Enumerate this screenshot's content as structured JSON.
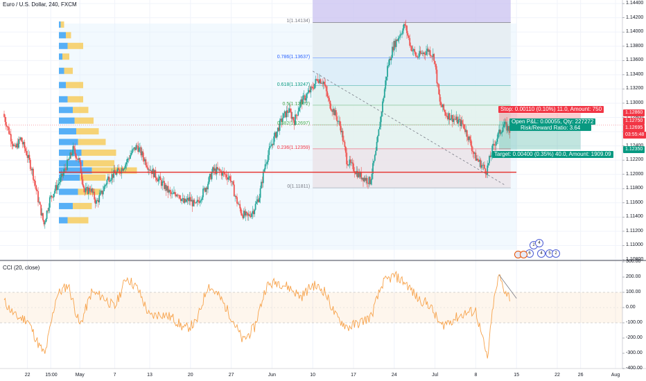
{
  "header": {
    "symbol_line": "Euro / U.S. Dollar, 240, FXCM"
  },
  "indicator": {
    "label": "CCI (20, close)"
  },
  "colors": {
    "up": "#26a69a",
    "down": "#ef5350",
    "cci": "#f7a24a",
    "vp_up": "#2196f3",
    "vp_down": "#f7c548",
    "redline": "#e53935",
    "stop_tag": "#f23645",
    "target_tag": "#089981",
    "price_tag": "#f23645"
  },
  "price_axis": {
    "ticks": [
      "1.14400",
      "1.14200",
      "1.14000",
      "1.13800",
      "1.13600",
      "1.13400",
      "1.13200",
      "1.13000",
      "1.12800",
      "1.12600",
      "1.12400",
      "1.12200",
      "1.12000",
      "1.11800",
      "1.11600",
      "1.11400",
      "1.11200",
      "1.11000",
      "1.10800"
    ],
    "tags": [
      {
        "text": "1.12860",
        "kind": "stop"
      },
      {
        "text": "1.12750",
        "kind": "last"
      },
      {
        "text": "1.12695",
        "kind": "last"
      },
      {
        "text": "03:55:48",
        "kind": "last"
      },
      {
        "text": "1.12350",
        "kind": "target"
      }
    ]
  },
  "cci_axis": {
    "ticks": [
      "300.00",
      "200.00",
      "100.00",
      "0.00",
      "-100.00",
      "-200.00",
      "-300.00",
      "-400.00"
    ]
  },
  "time_axis": {
    "labels": [
      "22",
      "15:00",
      "May",
      "7",
      "13",
      "20",
      "27",
      "Jun",
      "10",
      "17",
      "24",
      "Jul",
      "8",
      "15",
      "22",
      "26",
      "Aug"
    ]
  },
  "fib": {
    "levels": [
      {
        "text": "1(1.14134)"
      },
      {
        "text": "0.786(1.13637)"
      },
      {
        "text": "0.618(1.13247)"
      },
      {
        "text": "0.5(1.12972)"
      },
      {
        "text": "0.382(1.12697)"
      },
      {
        "text": "0.236(1.12359)"
      },
      {
        "text": "0(1.11811)"
      }
    ]
  },
  "position": {
    "stop_text": "Stop: 0.00110 (0.10%) 11.0, Amount: 750",
    "pnl_text": "Open P&L: 0.00055, Qty: 227272",
    "rr_text": "Risk/Reward Ratio: 3.64",
    "target_text": "Target: 0.00400 (0.35%) 40.0, Amount: 1909.09"
  },
  "event_badges": [
    "2",
    "4",
    "6",
    "4",
    "5",
    "2"
  ],
  "chart_data": {
    "type": "candlestick",
    "title": "Euro / U.S. Dollar, 240, FXCM",
    "y_range": [
      1.108,
      1.1445
    ],
    "x_range": [
      "Apr 18",
      "Aug 1"
    ],
    "redline_price": 1.1203,
    "cci": {
      "name": "CCI (20, close)",
      "y_range": [
        -400,
        300
      ],
      "band": [
        -100,
        100
      ]
    },
    "price_path": [
      [
        "Apr 18",
        1.1285
      ],
      [
        "Apr 19",
        1.126
      ],
      [
        "Apr 20",
        1.1235
      ],
      [
        "Apr 21",
        1.125
      ],
      [
        "Apr 22",
        1.123
      ],
      [
        "Apr 23",
        1.1205
      ],
      [
        "Apr 24",
        1.1165
      ],
      [
        "Apr 25",
        1.113
      ],
      [
        "Apr 26",
        1.1165
      ],
      [
        "Apr 27",
        1.118
      ],
      [
        "Apr 28",
        1.1195
      ],
      [
        "Apr 29",
        1.1215
      ],
      [
        "Apr 30",
        1.1235
      ],
      [
        "May 1",
        1.122
      ],
      [
        "May 2",
        1.1175
      ],
      [
        "May 3",
        1.118
      ],
      [
        "May 4",
        1.116
      ],
      [
        "May 5",
        1.1175
      ],
      [
        "May 6",
        1.1195
      ],
      [
        "May 7",
        1.12
      ],
      [
        "May 8",
        1.1205
      ],
      [
        "May 9",
        1.1215
      ],
      [
        "May 10",
        1.123
      ],
      [
        "May 11",
        1.124
      ],
      [
        "May 12",
        1.1225
      ],
      [
        "May 13",
        1.121
      ],
      [
        "May 14",
        1.12
      ],
      [
        "May 15",
        1.119
      ],
      [
        "May 16",
        1.118
      ],
      [
        "May 17",
        1.117
      ],
      [
        "May 18",
        1.1175
      ],
      [
        "May 19",
        1.116
      ],
      [
        "May 20",
        1.1165
      ],
      [
        "May 21",
        1.1155
      ],
      [
        "May 22",
        1.117
      ],
      [
        "May 23",
        1.1185
      ],
      [
        "May 24",
        1.1205
      ],
      [
        "May 25",
        1.1205
      ],
      [
        "May 26",
        1.12
      ],
      [
        "May 27",
        1.1195
      ],
      [
        "May 28",
        1.1165
      ],
      [
        "May 29",
        1.1145
      ],
      [
        "May 30",
        1.114
      ],
      [
        "May 31",
        1.115
      ],
      [
        "Jun 1",
        1.117
      ],
      [
        "Jun 2",
        1.1215
      ],
      [
        "Jun 3",
        1.124
      ],
      [
        "Jun 4",
        1.126
      ],
      [
        "Jun 5",
        1.128
      ],
      [
        "Jun 6",
        1.129
      ],
      [
        "Jun 7",
        1.1275
      ],
      [
        "Jun 8",
        1.13
      ],
      [
        "Jun 9",
        1.131
      ],
      [
        "Jun 10",
        1.132
      ],
      [
        "Jun 11",
        1.1335
      ],
      [
        "Jun 12",
        1.133
      ],
      [
        "Jun 13",
        1.13
      ],
      [
        "Jun 14",
        1.1285
      ],
      [
        "Jun 15",
        1.1265
      ],
      [
        "Jun 16",
        1.122
      ],
      [
        "Jun 17",
        1.121
      ],
      [
        "Jun 18",
        1.12
      ],
      [
        "Jun 19",
        1.1195
      ],
      [
        "Jun 20",
        1.119
      ],
      [
        "Jun 21",
        1.123
      ],
      [
        "Jun 22",
        1.129
      ],
      [
        "Jun 23",
        1.135
      ],
      [
        "Jun 24",
        1.138
      ],
      [
        "Jun 25",
        1.1395
      ],
      [
        "Jun 26",
        1.141
      ],
      [
        "Jun 27",
        1.138
      ],
      [
        "Jun 28",
        1.1365
      ],
      [
        "Jun 29",
        1.137
      ],
      [
        "Jun 30",
        1.1375
      ],
      [
        "Jul 1",
        1.1365
      ],
      [
        "Jul 2",
        1.13
      ],
      [
        "Jul 3",
        1.1285
      ],
      [
        "Jul 4",
        1.128
      ],
      [
        "Jul 5",
        1.1275
      ],
      [
        "Jul 6",
        1.127
      ],
      [
        "Jul 7",
        1.125
      ],
      [
        "Jul 8",
        1.1225
      ],
      [
        "Jul 9",
        1.1215
      ],
      [
        "Jul 10",
        1.1205
      ],
      [
        "Jul 11",
        1.1235
      ],
      [
        "Jul 12",
        1.1255
      ],
      [
        "Jul 13",
        1.127
      ],
      [
        "Jul 14",
        1.1262
      ]
    ],
    "cci_path": [
      [
        "Apr 18",
        40
      ],
      [
        "Apr 20",
        -60
      ],
      [
        "Apr 22",
        -80
      ],
      [
        "Apr 24",
        -250
      ],
      [
        "Apr 25",
        -310
      ],
      [
        "Apr 27",
        80
      ],
      [
        "Apr 29",
        150
      ],
      [
        "May 1",
        -120
      ],
      [
        "May 3",
        100
      ],
      [
        "May 5",
        70
      ],
      [
        "May 7",
        0
      ],
      [
        "May 9",
        200
      ],
      [
        "May 11",
        120
      ],
      [
        "May 13",
        -60
      ],
      [
        "May 15",
        -40
      ],
      [
        "May 17",
        -70
      ],
      [
        "May 19",
        -140
      ],
      [
        "May 21",
        -100
      ],
      [
        "May 23",
        150
      ],
      [
        "May 25",
        70
      ],
      [
        "May 27",
        -60
      ],
      [
        "May 29",
        -220
      ],
      [
        "May 31",
        -130
      ],
      [
        "Jun 2",
        140
      ],
      [
        "Jun 4",
        170
      ],
      [
        "Jun 6",
        130
      ],
      [
        "Jun 8",
        70
      ],
      [
        "Jun 10",
        150
      ],
      [
        "Jun 12",
        110
      ],
      [
        "Jun 14",
        -60
      ],
      [
        "Jun 16",
        -130
      ],
      [
        "Jun 18",
        -100
      ],
      [
        "Jun 20",
        -60
      ],
      [
        "Jun 22",
        160
      ],
      [
        "Jun 24",
        210
      ],
      [
        "Jun 26",
        160
      ],
      [
        "Jun 28",
        60
      ],
      [
        "Jun 30",
        20
      ],
      [
        "Jul 2",
        -120
      ],
      [
        "Jul 4",
        -80
      ],
      [
        "Jul 6",
        -40
      ],
      [
        "Jul 8",
        -20
      ],
      [
        "Jul 10",
        -340
      ],
      [
        "Jul 11",
        20
      ],
      [
        "Jul 12",
        210
      ],
      [
        "Jul 13",
        110
      ],
      [
        "Jul 14",
        60
      ]
    ],
    "volume_profile": [
      {
        "price": 1.1135,
        "up": 25,
        "down": 60
      },
      {
        "price": 1.1155,
        "up": 40,
        "down": 55
      },
      {
        "price": 1.1175,
        "up": 55,
        "down": 65
      },
      {
        "price": 1.1195,
        "up": 60,
        "down": 75
      },
      {
        "price": 1.1205,
        "up": 95,
        "down": 130
      },
      {
        "price": 1.1215,
        "up": 70,
        "down": 90
      },
      {
        "price": 1.123,
        "up": 65,
        "down": 100
      },
      {
        "price": 1.1245,
        "up": 55,
        "down": 80
      },
      {
        "price": 1.126,
        "up": 50,
        "down": 65
      },
      {
        "price": 1.1275,
        "up": 45,
        "down": 55
      },
      {
        "price": 1.129,
        "up": 40,
        "down": 45
      },
      {
        "price": 1.1305,
        "up": 25,
        "down": 45
      },
      {
        "price": 1.1325,
        "up": 20,
        "down": 50
      },
      {
        "price": 1.1345,
        "up": 15,
        "down": 25
      },
      {
        "price": 1.1365,
        "up": 10,
        "down": 20
      },
      {
        "price": 1.138,
        "up": 25,
        "down": 45
      },
      {
        "price": 1.1395,
        "up": 20,
        "down": 15
      },
      {
        "price": 1.141,
        "up": 5,
        "down": 10
      }
    ]
  }
}
